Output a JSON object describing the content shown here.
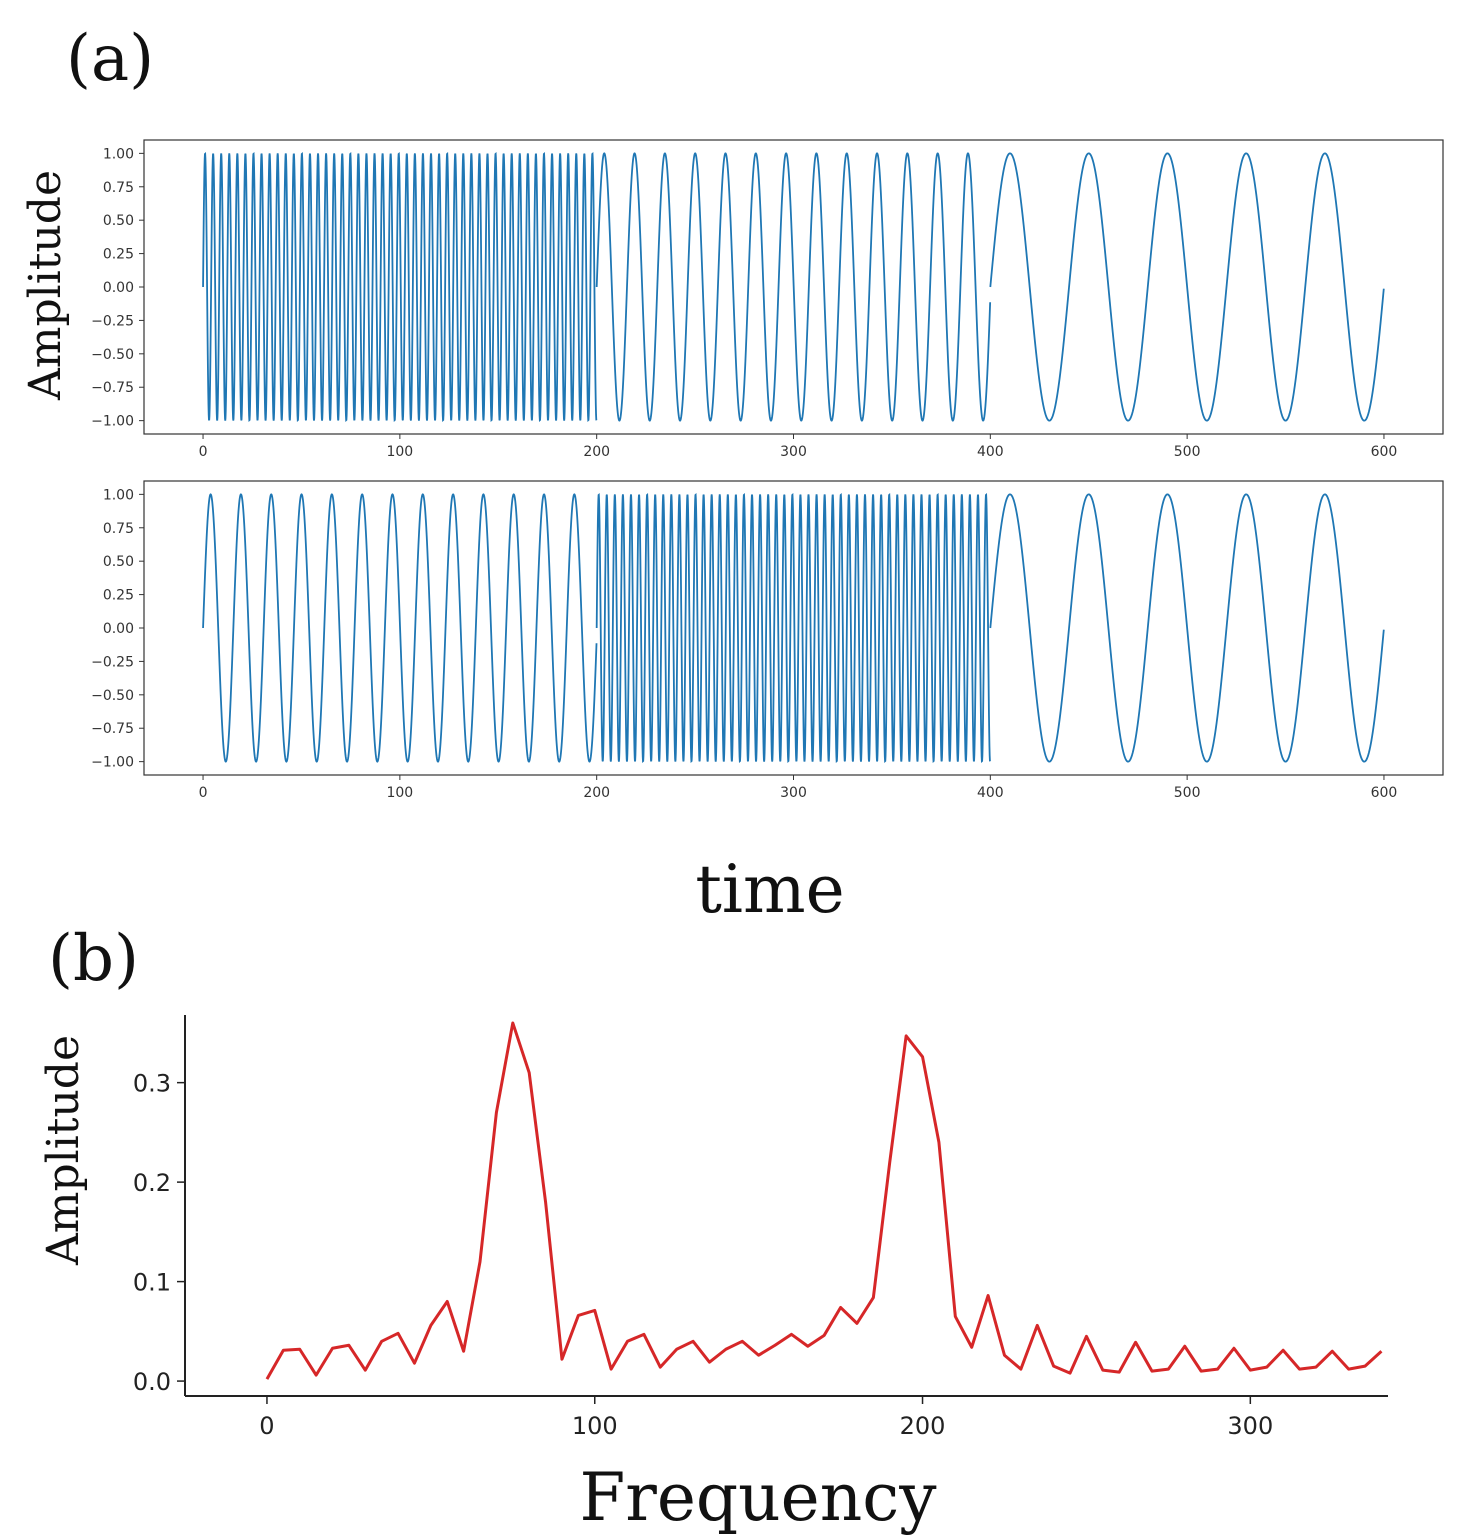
{
  "figure": {
    "panel_a_label": "(a)",
    "panel_b_label": "(b)",
    "time_label": "time"
  },
  "chart_data": [
    {
      "type": "line",
      "ylabel": "Amplitude",
      "xlabel": "",
      "xlim": [
        -30,
        630
      ],
      "ylim": [
        -1.1,
        1.1
      ],
      "x_ticks": [
        0,
        100,
        200,
        300,
        400,
        500,
        600
      ],
      "y_ticks": [
        1.0,
        0.75,
        0.5,
        0.25,
        0.0,
        -0.25,
        -0.5,
        -0.75,
        -1.0
      ],
      "x_tick_labels": [
        "0",
        "100",
        "200",
        "300",
        "400",
        "500",
        "600"
      ],
      "y_tick_labels": [
        "1.00",
        "0.75",
        "0.50",
        "0.25",
        "0.00",
        "−0.25",
        "−0.50",
        "−0.75",
        "−1.00"
      ],
      "grid": false,
      "color": "#1f77b4",
      "segments": [
        {
          "t_start": 0,
          "t_end": 200,
          "period": 4.1
        },
        {
          "t_start": 200,
          "t_end": 400,
          "period": 15.4
        },
        {
          "t_start": 400,
          "t_end": 600,
          "period": 40
        }
      ]
    },
    {
      "type": "line",
      "ylabel": "",
      "xlabel": "time",
      "xlim": [
        -30,
        630
      ],
      "ylim": [
        -1.1,
        1.1
      ],
      "x_ticks": [
        0,
        100,
        200,
        300,
        400,
        500,
        600
      ],
      "y_ticks": [
        1.0,
        0.75,
        0.5,
        0.25,
        0.0,
        -0.25,
        -0.5,
        -0.75,
        -1.0
      ],
      "x_tick_labels": [
        "0",
        "100",
        "200",
        "300",
        "400",
        "500",
        "600"
      ],
      "y_tick_labels": [
        "1.00",
        "0.75",
        "0.50",
        "0.25",
        "0.00",
        "−0.25",
        "−0.50",
        "−0.75",
        "−1.00"
      ],
      "grid": false,
      "color": "#1f77b4",
      "segments": [
        {
          "t_start": 0,
          "t_end": 200,
          "period": 15.4
        },
        {
          "t_start": 200,
          "t_end": 400,
          "period": 4.1
        },
        {
          "t_start": 400,
          "t_end": 600,
          "period": 40
        }
      ]
    },
    {
      "type": "line",
      "ylabel": "Amplitude",
      "xlabel": "Frequency",
      "xlim": [
        -25,
        342
      ],
      "ylim": [
        -0.015,
        0.368
      ],
      "x_ticks": [
        0,
        100,
        200,
        300
      ],
      "y_ticks": [
        0.0,
        0.1,
        0.2,
        0.3
      ],
      "x_tick_labels": [
        "0",
        "100",
        "200",
        "300"
      ],
      "y_tick_labels": [
        "0.0",
        "0.1",
        "0.2",
        "0.3"
      ],
      "grid": false,
      "color": "#d62728",
      "x": [
        0,
        5,
        10,
        15,
        20,
        25,
        30,
        35,
        40,
        45,
        50,
        55,
        60,
        65,
        70,
        75,
        80,
        85,
        90,
        95,
        100,
        105,
        110,
        115,
        120,
        125,
        130,
        135,
        140,
        145,
        150,
        155,
        160,
        165,
        170,
        175,
        180,
        185,
        190,
        195,
        200,
        205,
        210,
        215,
        220,
        225,
        230,
        235,
        240,
        245,
        250,
        255,
        260,
        265,
        270,
        275,
        280,
        285,
        290,
        295,
        300,
        305,
        310,
        315,
        320,
        325,
        330,
        335,
        340
      ],
      "y": [
        0.002,
        0.031,
        0.032,
        0.006,
        0.033,
        0.036,
        0.011,
        0.04,
        0.048,
        0.018,
        0.056,
        0.08,
        0.03,
        0.12,
        0.27,
        0.36,
        0.31,
        0.18,
        0.022,
        0.066,
        0.071,
        0.012,
        0.04,
        0.047,
        0.014,
        0.032,
        0.04,
        0.019,
        0.032,
        0.04,
        0.026,
        0.036,
        0.047,
        0.035,
        0.046,
        0.074,
        0.058,
        0.084,
        0.22,
        0.347,
        0.326,
        0.24,
        0.065,
        0.034,
        0.086,
        0.026,
        0.012,
        0.056,
        0.015,
        0.008,
        0.045,
        0.011,
        0.009,
        0.039,
        0.01,
        0.012,
        0.035,
        0.01,
        0.012,
        0.033,
        0.011,
        0.014,
        0.031,
        0.012,
        0.014,
        0.03,
        0.012,
        0.015,
        0.03
      ]
    }
  ]
}
